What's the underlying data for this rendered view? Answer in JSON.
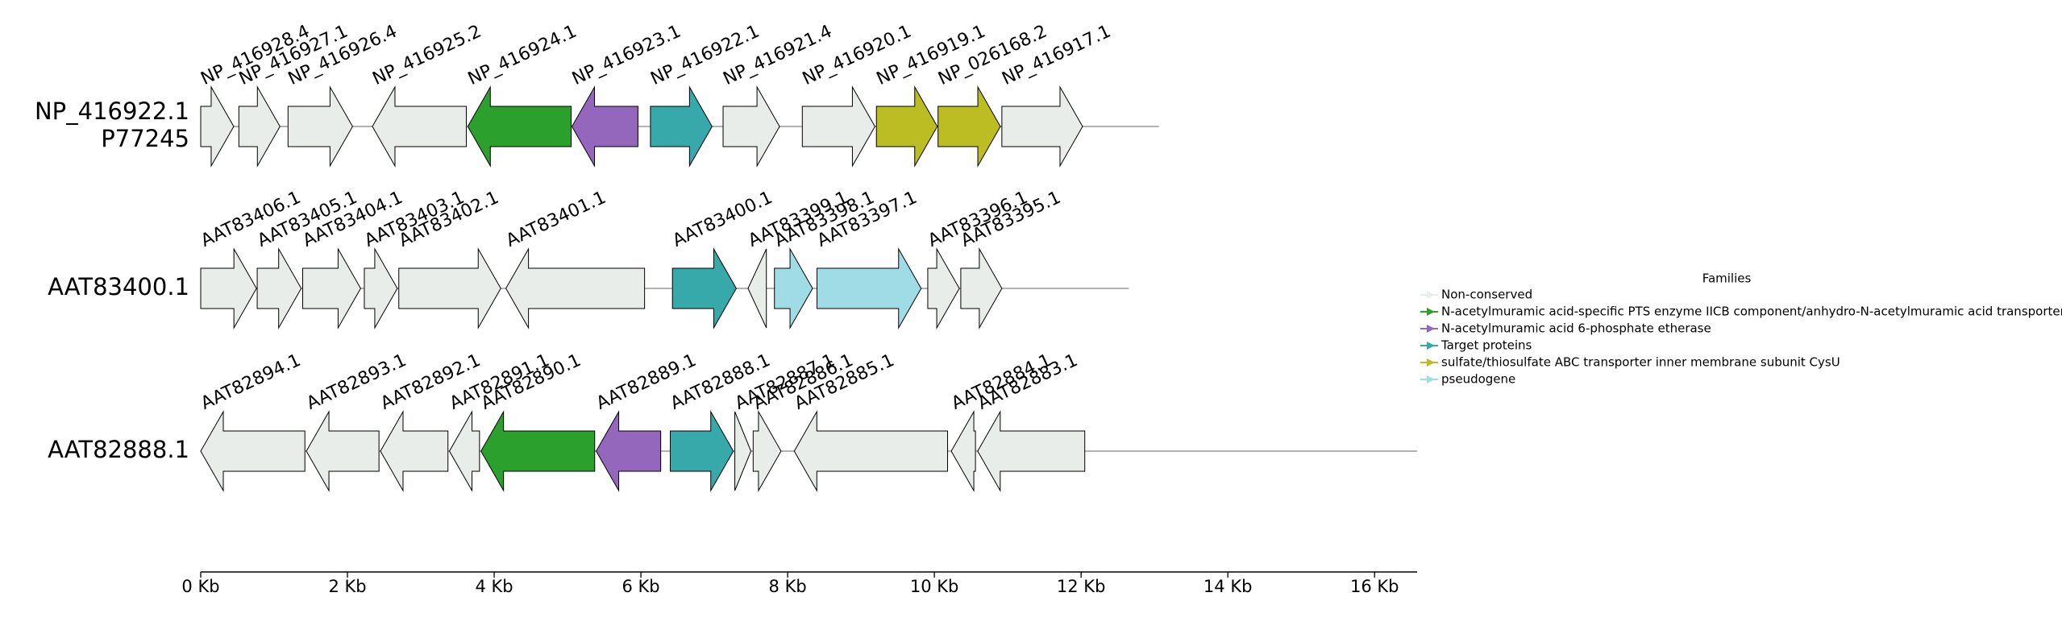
{
  "chart_data": {
    "type": "gene-neighborhood",
    "xlim": [
      0,
      16.58
    ],
    "xticks": [
      {
        "value": 0,
        "label": "0 Kb"
      },
      {
        "value": 2,
        "label": "2 Kb"
      },
      {
        "value": 4,
        "label": "4 Kb"
      },
      {
        "value": 6,
        "label": "6 Kb"
      },
      {
        "value": 8,
        "label": "8 Kb"
      },
      {
        "value": 10,
        "label": "10 Kb"
      },
      {
        "value": 12,
        "label": "12 Kb"
      },
      {
        "value": 14,
        "label": "14 Kb"
      },
      {
        "value": 16,
        "label": "16 Kb"
      }
    ],
    "rows": [
      {
        "labels": [
          "NP_416922.1",
          "P77245"
        ],
        "length": 13.06,
        "genes": [
          {
            "name": "NP_416928.4",
            "start": 0,
            "end": 0.45,
            "direction": "forward",
            "color": "#e8ede9"
          },
          {
            "name": "NP_416927.1",
            "start": 0.52,
            "end": 1.08,
            "direction": "forward",
            "color": "#e8ede9"
          },
          {
            "name": "NP_416926.4",
            "start": 1.19,
            "end": 2.07,
            "direction": "forward",
            "color": "#e8ede9"
          },
          {
            "name": "NP_416925.2",
            "start": 2.34,
            "end": 3.62,
            "direction": "reverse",
            "color": "#e8ede9"
          },
          {
            "name": "NP_416924.1",
            "start": 3.64,
            "end": 5.05,
            "direction": "reverse",
            "color": "#2ca02c"
          },
          {
            "name": "NP_416923.1",
            "start": 5.06,
            "end": 5.96,
            "direction": "reverse",
            "color": "#9467bd"
          },
          {
            "name": "NP_416922.1",
            "start": 6.13,
            "end": 6.97,
            "direction": "forward",
            "color": "#38a9ab"
          },
          {
            "name": "NP_416921.4",
            "start": 7.12,
            "end": 7.89,
            "direction": "forward",
            "color": "#e8ede9"
          },
          {
            "name": "NP_416920.1",
            "start": 8.2,
            "end": 9.19,
            "direction": "forward",
            "color": "#e8ede9"
          },
          {
            "name": "NP_416919.1",
            "start": 9.21,
            "end": 10.04,
            "direction": "forward",
            "color": "#bcbd22"
          },
          {
            "name": "NP_026168.2",
            "start": 10.05,
            "end": 10.9,
            "direction": "forward",
            "color": "#bcbd22"
          },
          {
            "name": "NP_416917.1",
            "start": 10.92,
            "end": 12.02,
            "direction": "forward",
            "color": "#e8ede9"
          }
        ]
      },
      {
        "labels": [
          "AAT83400.1"
        ],
        "length": 12.65,
        "genes": [
          {
            "name": "AAT83406.1",
            "start": 0,
            "end": 0.76,
            "direction": "forward",
            "color": "#e8ede9"
          },
          {
            "name": "AAT83405.1",
            "start": 0.77,
            "end": 1.37,
            "direction": "forward",
            "color": "#e8ede9"
          },
          {
            "name": "AAT83404.1",
            "start": 1.39,
            "end": 2.18,
            "direction": "forward",
            "color": "#e8ede9"
          },
          {
            "name": "AAT83403.1",
            "start": 2.23,
            "end": 2.68,
            "direction": "forward",
            "color": "#e8ede9"
          },
          {
            "name": "AAT83402.1",
            "start": 2.7,
            "end": 4.09,
            "direction": "forward",
            "color": "#e8ede9"
          },
          {
            "name": "AAT83401.1",
            "start": 4.16,
            "end": 6.05,
            "direction": "reverse",
            "color": "#e8ede9"
          },
          {
            "name": "AAT83400.1",
            "start": 6.43,
            "end": 7.3,
            "direction": "forward",
            "color": "#38a9ab"
          },
          {
            "name": "AAT83399.1",
            "start": 7.46,
            "end": 7.71,
            "direction": "reverse",
            "color": "#e8ede9"
          },
          {
            "name": "AAT83398.1",
            "start": 7.82,
            "end": 8.34,
            "direction": "forward",
            "color": "#9fdce6"
          },
          {
            "name": "AAT83397.1",
            "start": 8.4,
            "end": 9.82,
            "direction": "forward",
            "color": "#9fdce6"
          },
          {
            "name": "AAT83396.1",
            "start": 9.91,
            "end": 10.34,
            "direction": "forward",
            "color": "#e8ede9"
          },
          {
            "name": "AAT83395.1",
            "start": 10.36,
            "end": 10.92,
            "direction": "forward",
            "color": "#e8ede9"
          }
        ]
      },
      {
        "labels": [
          "AAT82888.1"
        ],
        "length": 16.58,
        "genes": [
          {
            "name": "AAT82894.1",
            "start": 0,
            "end": 1.42,
            "direction": "reverse",
            "color": "#e8ede9"
          },
          {
            "name": "AAT82893.1",
            "start": 1.44,
            "end": 2.43,
            "direction": "reverse",
            "color": "#e8ede9"
          },
          {
            "name": "AAT82892.1",
            "start": 2.45,
            "end": 3.37,
            "direction": "reverse",
            "color": "#e8ede9"
          },
          {
            "name": "AAT82891.1",
            "start": 3.39,
            "end": 3.8,
            "direction": "reverse",
            "color": "#e8ede9"
          },
          {
            "name": "AAT82890.1",
            "start": 3.82,
            "end": 5.37,
            "direction": "reverse",
            "color": "#2ca02c"
          },
          {
            "name": "AAT82889.1",
            "start": 5.39,
            "end": 6.27,
            "direction": "reverse",
            "color": "#9467bd"
          },
          {
            "name": "AAT82888.1",
            "start": 6.4,
            "end": 7.26,
            "direction": "forward",
            "color": "#38a9ab"
          },
          {
            "name": "AAT82887.1",
            "start": 7.28,
            "end": 7.5,
            "direction": "forward",
            "color": "#e8ede9"
          },
          {
            "name": "AAT82886.1",
            "start": 7.53,
            "end": 7.91,
            "direction": "forward",
            "color": "#e8ede9"
          },
          {
            "name": "AAT82885.1",
            "start": 8.09,
            "end": 10.18,
            "direction": "reverse",
            "color": "#e8ede9"
          },
          {
            "name": "AAT82884.1",
            "start": 10.23,
            "end": 10.56,
            "direction": "reverse",
            "color": "#e8ede9"
          },
          {
            "name": "AAT82883.1",
            "start": 10.59,
            "end": 12.05,
            "direction": "reverse",
            "color": "#e8ede9"
          }
        ]
      }
    ],
    "legend": {
      "title": "Families",
      "entries": [
        {
          "name": "Non-conserved",
          "color": "#e8ede9"
        },
        {
          "name": "N-acetylmuramic acid-specific PTS enzyme IICB component/anhydro-N-acetylmuramic acid transporter",
          "color": "#2ca02c"
        },
        {
          "name": "N-acetylmuramic acid 6-phosphate etherase",
          "color": "#9467bd"
        },
        {
          "name": "Target proteins",
          "color": "#38a9ab"
        },
        {
          "name": "sulfate/thiosulfate ABC transporter inner membrane subunit CysU",
          "color": "#bcbd22"
        },
        {
          "name": "pseudogene",
          "color": "#9fdce6"
        }
      ]
    }
  }
}
